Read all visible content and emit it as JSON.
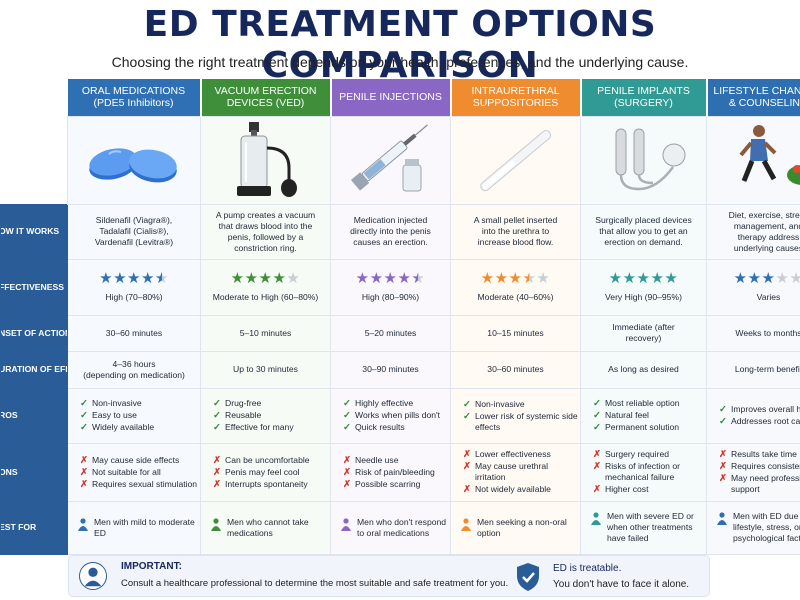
{
  "title": "ED TREATMENT OPTIONS COMPARISON",
  "subtitle": "Choosing the right treatment depends on your health, preferences, and the underlying cause.",
  "colors": {
    "navy": "#16275c",
    "row_label_bg": "#2a5c97",
    "oral": "#2f6fb3",
    "vacuum": "#3f8f3a",
    "injections": "#8a67c4",
    "suppositories": "#ee8c2f",
    "implants": "#2f9b94",
    "lifestyle": "#2d6fb0",
    "pro_check": "#2e8b3d",
    "con_x": "#d23b2f"
  },
  "row_labels": {
    "how": "OW IT WORKS",
    "effectiveness": "FFECTIVENESS",
    "onset": "NSET OF ACTION",
    "duration": "URATION OF EFFECT",
    "pros": "ROS",
    "cons": "ONS",
    "best": "EST FOR"
  },
  "columns": [
    {
      "header": [
        "ORAL MEDICATIONS",
        "(PDE5 Inhibitors)"
      ],
      "image": "blue-pills-icon",
      "how": [
        "Sildenafil (Viagra®),",
        "Tadalafil (Cialis®),",
        "Vardenafil (Levitra®)"
      ],
      "stars": 4.5,
      "rating": "High (70–80%)",
      "onset": [
        "30–60 minutes"
      ],
      "duration": [
        "4–36 hours",
        "(depending on medication)"
      ],
      "pros": [
        "Non-invasive",
        "Easy to use",
        "Widely available"
      ],
      "cons": [
        "May cause side effects",
        "Not suitable for all",
        "Requires sexual stimulation"
      ],
      "best": "Men with mild to moderate ED"
    },
    {
      "header": [
        "VACUUM ERECTION",
        "DEVICES (VED)"
      ],
      "image": "vacuum-pump-icon",
      "how": [
        "A pump creates a vacuum",
        "that draws blood into the",
        "penis, followed by a",
        "constriction ring."
      ],
      "stars": 4,
      "rating": "Moderate to High (60–80%)",
      "onset": [
        "5–10 minutes"
      ],
      "duration": [
        "Up to 30 minutes"
      ],
      "pros": [
        "Drug-free",
        "Reusable",
        "Effective for many"
      ],
      "cons": [
        "Can be uncomfortable",
        "Penis may feel cool",
        "Interrupts spontaneity"
      ],
      "best": "Men who cannot take medications"
    },
    {
      "header": [
        "PENILE INJECTIONS"
      ],
      "image": "syringe-vial-icon",
      "how": [
        "Medication injected",
        "directly into the penis",
        "causes an erection."
      ],
      "stars": 4.5,
      "rating": "High (80–90%)",
      "onset": [
        "5–20 minutes"
      ],
      "duration": [
        "30–90 minutes"
      ],
      "pros": [
        "Highly effective",
        "Works when pills don't",
        "Quick results"
      ],
      "cons": [
        "Needle use",
        "Risk of pain/bleeding",
        "Possible scarring"
      ],
      "best": "Men who don't respond to oral medications"
    },
    {
      "header": [
        "INTRAURETHRAL",
        "SUPPOSITORIES"
      ],
      "image": "applicator-icon",
      "how": [
        "A small pellet inserted",
        "into the urethra to",
        "increase blood flow."
      ],
      "stars": 3.5,
      "rating": "Moderate (40–60%)",
      "onset": [
        "10–15 minutes"
      ],
      "duration": [
        "30–60 minutes"
      ],
      "pros": [
        "Non-invasive",
        "Lower risk of systemic side effects"
      ],
      "cons": [
        "Lower effectiveness",
        "May cause urethral irritation",
        "Not widely available"
      ],
      "best": "Men seeking a non-oral option"
    },
    {
      "header": [
        "PENILE IMPLANTS",
        "(SURGERY)"
      ],
      "image": "implant-device-icon",
      "how": [
        "Surgically placed devices",
        "that allow you to get an",
        "erection on demand."
      ],
      "stars": 5,
      "rating": "Very High (90–95%)",
      "onset": [
        "Immediate (after",
        "recovery)"
      ],
      "duration": [
        "As long as desired"
      ],
      "pros": [
        "Most reliable option",
        "Natural feel",
        "Permanent solution"
      ],
      "cons": [
        "Surgery required",
        "Risks of infection or mechanical failure",
        "Higher cost"
      ],
      "best": "Men with severe ED or when other treatments have failed"
    },
    {
      "header": [
        "LIFESTYLE CHANGES",
        "& COUNSELING"
      ],
      "image": "runner-salad-icon",
      "how": [
        "Diet, exercise, stress",
        "management, and",
        "therapy address",
        "underlying causes"
      ],
      "stars": 3,
      "rating": "Varies",
      "onset": [
        "Weeks to months"
      ],
      "duration": [
        "Long-term benefit"
      ],
      "pros": [
        "Improves overall health",
        "Addresses root causes"
      ],
      "cons": [
        "Results take time",
        "Requires consistent effort",
        "May need professional support"
      ],
      "best": "Men with ED due to lifestyle, stress, or psychological factors"
    }
  ],
  "footer": {
    "important_label": "IMPORTANT:",
    "important_text": "Consult a healthcare professional to determine the most suitable and safe treatment for you.",
    "badge_title": "ED is treatable.",
    "badge_text": "You don't have to face it alone.",
    "left_icon": "doctor-icon",
    "right_icon": "shield-check-icon"
  }
}
